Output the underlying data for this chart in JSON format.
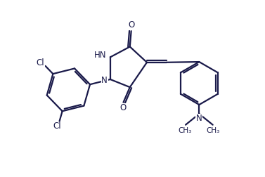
{
  "bg_color": "#ffffff",
  "line_color": "#1a1a4a",
  "line_width": 1.6,
  "font_size": 8.5,
  "fig_width": 3.77,
  "fig_height": 2.52,
  "dpi": 100,
  "xlim": [
    0,
    10
  ],
  "ylim": [
    0,
    6.7
  ]
}
